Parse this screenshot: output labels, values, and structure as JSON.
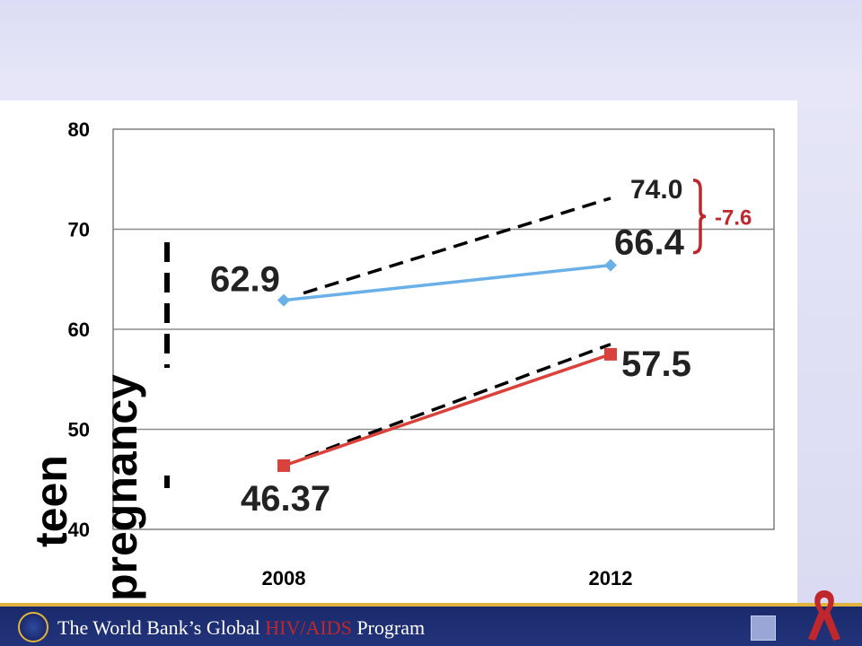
{
  "chart_data": {
    "type": "line",
    "categories": [
      "2008",
      "2012"
    ],
    "ylim": [
      40,
      80
    ],
    "yticks": [
      "40",
      "50",
      "60",
      "70",
      "80"
    ],
    "grid": true,
    "series": [
      {
        "values": [
          62.9,
          66.4
        ],
        "labels": [
          "62.9",
          "66.4"
        ],
        "color": "#6ab0e8",
        "marker": "diamond"
      },
      {
        "values": [
          46.37,
          57.5
        ],
        "labels": [
          "46.37",
          "57.5"
        ],
        "color": "#d9423b",
        "marker": "square"
      }
    ],
    "projection": {
      "end_value": 74.0,
      "label": "74.0",
      "style": "dashed"
    },
    "lower_trend": {
      "values": [
        47.5,
        58.5
      ],
      "style": "dashed"
    },
    "gap_annotation": {
      "label": "-7.6",
      "color": "#c0272d"
    },
    "overlay_text": [
      "teen",
      "pregnancy"
    ]
  },
  "footer": {
    "text_before": "The World Bank’s Global ",
    "text_highlight": "HIV/AIDS",
    "text_after": " Program",
    "accent_color": "#e0b43c",
    "highlight_color": "#c0272d"
  }
}
